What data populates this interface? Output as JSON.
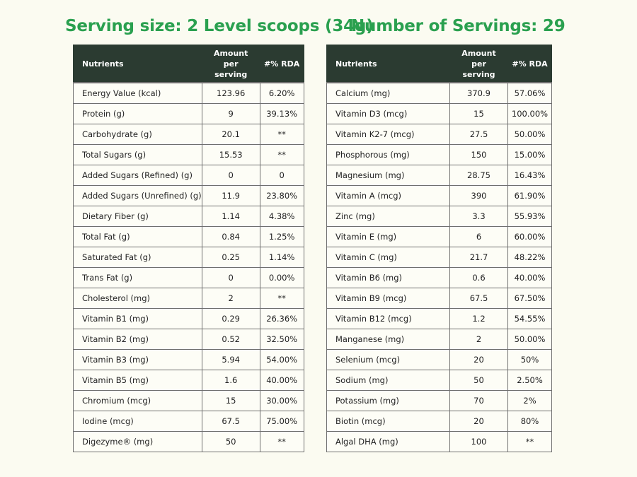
{
  "headings": {
    "serving_size": "Serving size: 2 Level scoops (34g)",
    "servings": "Number of Servings: 29"
  },
  "columns": {
    "nutrients": "Nutrients",
    "amount_line1": "Amount",
    "amount_line2": "per",
    "amount_line3": "serving",
    "rda": "#% RDA"
  },
  "left_table": [
    {
      "nutrient": "Energy Value (kcal)",
      "amount": "123.96",
      "rda": "6.20%"
    },
    {
      "nutrient": "Protein (g)",
      "amount": "9",
      "rda": "39.13%"
    },
    {
      "nutrient": "Carbohydrate (g)",
      "amount": "20.1",
      "rda": "**"
    },
    {
      "nutrient": "Total Sugars (g)",
      "amount": "15.53",
      "rda": "**"
    },
    {
      "nutrient": "Added Sugars (Refined) (g)",
      "amount": "0",
      "rda": "0"
    },
    {
      "nutrient": "Added Sugars (Unrefined) (g)",
      "amount": "11.9",
      "rda": "23.80%"
    },
    {
      "nutrient": "Dietary Fiber (g)",
      "amount": "1.14",
      "rda": "4.38%"
    },
    {
      "nutrient": "Total Fat (g)",
      "amount": "0.84",
      "rda": "1.25%"
    },
    {
      "nutrient": "Saturated Fat (g)",
      "amount": "0.25",
      "rda": "1.14%"
    },
    {
      "nutrient": "Trans Fat (g)",
      "amount": "0",
      "rda": "0.00%"
    },
    {
      "nutrient": "Cholesterol (mg)",
      "amount": "2",
      "rda": "**"
    },
    {
      "nutrient": "Vitamin B1 (mg)",
      "amount": "0.29",
      "rda": "26.36%"
    },
    {
      "nutrient": "Vitamin B2 (mg)",
      "amount": "0.52",
      "rda": "32.50%"
    },
    {
      "nutrient": "Vitamin B3 (mg)",
      "amount": "5.94",
      "rda": "54.00%"
    },
    {
      "nutrient": "Vitamin B5 (mg)",
      "amount": "1.6",
      "rda": "40.00%"
    },
    {
      "nutrient": "Chromium (mcg)",
      "amount": "15",
      "rda": "30.00%"
    },
    {
      "nutrient": "Iodine (mcg)",
      "amount": "67.5",
      "rda": "75.00%"
    },
    {
      "nutrient": "Digezyme® (mg)",
      "amount": "50",
      "rda": "**"
    }
  ],
  "right_table": [
    {
      "nutrient": "Calcium (mg)",
      "amount": "370.9",
      "rda": "57.06%"
    },
    {
      "nutrient": "Vitamin D3 (mcg)",
      "amount": "15",
      "rda": "100.00%"
    },
    {
      "nutrient": "Vitamin K2-7 (mcg)",
      "amount": "27.5",
      "rda": "50.00%"
    },
    {
      "nutrient": "Phosphorous (mg)",
      "amount": "150",
      "rda": "15.00%"
    },
    {
      "nutrient": "Magnesium (mg)",
      "amount": "28.75",
      "rda": "16.43%"
    },
    {
      "nutrient": "Vitamin A (mcg)",
      "amount": "390",
      "rda": "61.90%"
    },
    {
      "nutrient": "Zinc (mg)",
      "amount": "3.3",
      "rda": "55.93%"
    },
    {
      "nutrient": "Vitamin E (mg)",
      "amount": "6",
      "rda": "60.00%"
    },
    {
      "nutrient": "Vitamin C (mg)",
      "amount": "21.7",
      "rda": "48.22%"
    },
    {
      "nutrient": "Vitamin B6 (mg)",
      "amount": "0.6",
      "rda": "40.00%"
    },
    {
      "nutrient": "Vitamin B9 (mcg)",
      "amount": "67.5",
      "rda": "67.50%"
    },
    {
      "nutrient": "Vitamin B12 (mcg)",
      "amount": "1.2",
      "rda": "54.55%"
    },
    {
      "nutrient": "Manganese (mg)",
      "amount": "2",
      "rda": "50.00%"
    },
    {
      "nutrient": "Selenium (mcg)",
      "amount": "20",
      "rda": "50%"
    },
    {
      "nutrient": "Sodium (mg)",
      "amount": "50",
      "rda": "2.50%"
    },
    {
      "nutrient": "Potassium (mg)",
      "amount": "70",
      "rda": "2%"
    },
    {
      "nutrient": "Biotin (mcg)",
      "amount": "20",
      "rda": "80%"
    },
    {
      "nutrient": "Algal DHA (mg)",
      "amount": "100",
      "rda": "**"
    }
  ]
}
